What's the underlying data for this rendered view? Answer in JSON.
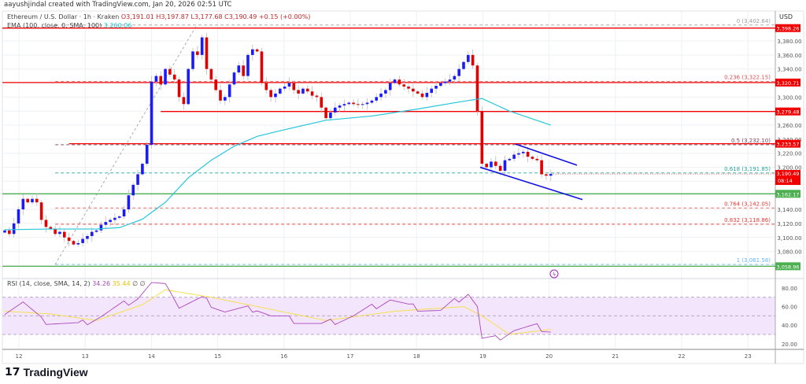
{
  "credit": "aayushjindal created with TradingView.com, Jan 20, 2026 02:51 UTC",
  "legend": {
    "symbol": "Ethereum / U.S. Dollar · 1h · Kraken",
    "open": "O3,191.01",
    "high": "H3,197.87",
    "low": "L3,177.68",
    "close": "C3,190.49",
    "change": "+0.15 (+0.00%)",
    "ema_label": "EMA (100, close, 0, SMA, 100)",
    "ema_value": "3,260.06",
    "rsi_label": "RSI (14, close, SMA, 14, 2)",
    "rsi_value": "34.26",
    "rsi_sma_value": "35.44",
    "rsi_extra": "∅ ∅"
  },
  "currency": "USD",
  "logo": "TradingView",
  "colors": {
    "up": "#1a1aff",
    "down": "#e00000",
    "ema": "#26c6da",
    "rsi": "#ab47bc",
    "rsi_sma": "#f5e050",
    "support": "#4caf50",
    "resistance": "#f00000",
    "channel": "#1010e0",
    "rsi_band": "#f3e5fc"
  },
  "chart_data": {
    "type": "candlestick",
    "price_axis": {
      "ticks": [
        "3,380.00",
        "3,360.00",
        "3,340.00",
        "3,300.00",
        "3,260.00",
        "3,240.00",
        "3,220.00",
        "3,200.00",
        "3,140.00",
        "3,120.00",
        "3,100.00",
        "3,080.00"
      ],
      "range": [
        3050,
        3405
      ]
    },
    "time_axis": {
      "ticks": [
        "12",
        "13",
        "14",
        "15",
        "16",
        "17",
        "18",
        "19",
        "20",
        "21",
        "22",
        "23"
      ]
    },
    "closes": [
      3110,
      3105,
      3120,
      3140,
      3155,
      3150,
      3155,
      3150,
      3125,
      3115,
      3112,
      3105,
      3108,
      3100,
      3095,
      3090,
      3092,
      3098,
      3102,
      3108,
      3110,
      3118,
      3122,
      3125,
      3128,
      3130,
      3140,
      3160,
      3175,
      3190,
      3205,
      3232,
      3322,
      3330,
      3318,
      3340,
      3332,
      3325,
      3300,
      3290,
      3340,
      3365,
      3360,
      3385,
      3340,
      3325,
      3310,
      3295,
      3300,
      3318,
      3335,
      3345,
      3330,
      3360,
      3368,
      3365,
      3320,
      3310,
      3300,
      3305,
      3312,
      3315,
      3320,
      3310,
      3305,
      3312,
      3308,
      3302,
      3300,
      3285,
      3270,
      3278,
      3285,
      3288,
      3290,
      3292,
      3290,
      3289,
      3290,
      3292,
      3295,
      3300,
      3305,
      3310,
      3320,
      3325,
      3318,
      3315,
      3312,
      3308,
      3305,
      3300,
      3306,
      3312,
      3316,
      3320,
      3322,
      3325,
      3330,
      3340,
      3350,
      3360,
      3345,
      3280,
      3205,
      3200,
      3208,
      3202,
      3195,
      3210,
      3212,
      3218,
      3220,
      3222,
      3215,
      3212,
      3210,
      3190,
      3188,
      3190.49
    ],
    "ema100": [
      [
        0,
        3111
      ],
      [
        10,
        3112
      ],
      [
        20,
        3112
      ],
      [
        25,
        3114
      ],
      [
        30,
        3126
      ],
      [
        35,
        3150
      ],
      [
        40,
        3185
      ],
      [
        45,
        3210
      ],
      [
        50,
        3230
      ],
      [
        55,
        3244
      ],
      [
        60,
        3252
      ],
      [
        70,
        3267
      ],
      [
        80,
        3273
      ],
      [
        90,
        3283
      ],
      [
        100,
        3294
      ],
      [
        104,
        3298
      ],
      [
        110,
        3280
      ],
      [
        119,
        3260
      ]
    ],
    "horizontal_levels": [
      {
        "price": 3398.26,
        "label": "3,398.26",
        "color": "#f00000",
        "from": 0
      },
      {
        "price": 3320.71,
        "label": "3,320.71",
        "color": "#f00000",
        "from": 0
      },
      {
        "price": 3279.48,
        "label": "3,279.48",
        "color": "#f00000",
        "from": 34
      },
      {
        "price": 3233.57,
        "label": "3,233.57",
        "color": "#f00000",
        "from": 14
      },
      {
        "price": 3162.17,
        "label": "3,162.17",
        "color": "#4caf50",
        "from": 0
      },
      {
        "price": 3058.96,
        "label": "3,058.96",
        "color": "#4caf50",
        "from": 0
      }
    ],
    "fib_levels": [
      {
        "price": 3402.64,
        "label": "0 (3,402.64)",
        "color": "#9e9e9e"
      },
      {
        "price": 3322.15,
        "label": "0.236 (3,322.15)",
        "color": "#e05050"
      },
      {
        "price": 3232.1,
        "label": "0.5 (3,232.10)",
        "color": "#7b3f5a"
      },
      {
        "price": 3191.85,
        "label": "0.618 (3,191.85)",
        "color": "#26a69a"
      },
      {
        "price": 3142.05,
        "label": "0.764 (3,142.05)",
        "color": "#e53935"
      },
      {
        "price": 3118.86,
        "label": "0.832 (3,118.86)",
        "color": "#e53935"
      },
      {
        "price": 3061.56,
        "label": "1 (3,061.56)",
        "color": "#64b5f6"
      }
    ],
    "last_price": {
      "label": "3,190.49",
      "countdown": "08:14",
      "price": 3190.49
    },
    "rsi": {
      "ticks": [
        "80.00",
        "60.00",
        "40.00",
        "20.00"
      ],
      "band": [
        30,
        70
      ],
      "values": [
        [
          0,
          55
        ],
        [
          4,
          65
        ],
        [
          8,
          45
        ],
        [
          16,
          40
        ],
        [
          21,
          50
        ],
        [
          29,
          70
        ],
        [
          32,
          85
        ],
        [
          36,
          80
        ],
        [
          38,
          60
        ],
        [
          43,
          68
        ],
        [
          48,
          55
        ],
        [
          55,
          58
        ],
        [
          58,
          50
        ],
        [
          69,
          40
        ],
        [
          76,
          50
        ],
        [
          84,
          68
        ],
        [
          88,
          60
        ],
        [
          95,
          55
        ],
        [
          101,
          75
        ],
        [
          103,
          60
        ],
        [
          104,
          25
        ],
        [
          107,
          25
        ],
        [
          111,
          35
        ],
        [
          116,
          38
        ],
        [
          119,
          34.26
        ]
      ],
      "sma": [
        [
          0,
          55
        ],
        [
          10,
          52
        ],
        [
          20,
          45
        ],
        [
          30,
          62
        ],
        [
          35,
          78
        ],
        [
          45,
          70
        ],
        [
          60,
          55
        ],
        [
          70,
          45
        ],
        [
          85,
          55
        ],
        [
          100,
          60
        ],
        [
          104,
          50
        ],
        [
          110,
          30
        ],
        [
          119,
          35.44
        ]
      ]
    }
  }
}
